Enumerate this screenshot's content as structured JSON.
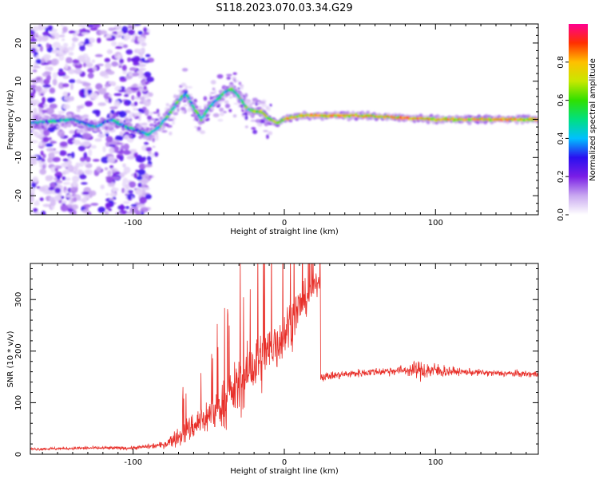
{
  "title": "S118.2023.070.03.34.G29",
  "chart_data": [
    {
      "type": "heatmap",
      "xlabel": "Height of straight line (km)",
      "ylabel": "Frequency (Hz)",
      "xlim": [
        -168,
        168
      ],
      "ylim": [
        -25,
        25
      ],
      "x_ticks": [
        -100,
        0,
        100
      ],
      "y_ticks": [
        -20,
        -10,
        0,
        10,
        20
      ],
      "colorbar": {
        "label": "Normalized spectral amplitude",
        "ticks": [
          0.0,
          0.2,
          0.4,
          0.6,
          0.8
        ],
        "range": [
          0,
          1
        ],
        "colors": [
          "#ffffff",
          "#c9a8f0",
          "#7a1ee6",
          "#2a10f0",
          "#00c0ff",
          "#00e080",
          "#30e000",
          "#c8e800",
          "#ffc000",
          "#ff3000",
          "#ff0090"
        ]
      },
      "ridge": [
        [
          -168,
          -1
        ],
        [
          -140,
          0
        ],
        [
          -125,
          -2
        ],
        [
          -115,
          0
        ],
        [
          -105,
          -2
        ],
        [
          -90,
          -4
        ],
        [
          -83,
          -2
        ],
        [
          -75,
          2
        ],
        [
          -70,
          5
        ],
        [
          -65,
          7
        ],
        [
          -60,
          3
        ],
        [
          -55,
          0
        ],
        [
          -50,
          3
        ],
        [
          -45,
          5
        ],
        [
          -40,
          7
        ],
        [
          -35,
          8
        ],
        [
          -30,
          6
        ],
        [
          -25,
          3
        ],
        [
          -20,
          2
        ],
        [
          -15,
          2
        ],
        [
          -10,
          0
        ],
        [
          -5,
          -1
        ],
        [
          0,
          0
        ],
        [
          10,
          1
        ],
        [
          25,
          1
        ],
        [
          50,
          1
        ],
        [
          75,
          0.5
        ],
        [
          100,
          0
        ],
        [
          125,
          0
        ],
        [
          150,
          0
        ],
        [
          168,
          0
        ]
      ]
    },
    {
      "type": "line",
      "xlabel": "Height of straight line (km)",
      "ylabel": "SNR (10 * v/v)",
      "xlim": [
        -168,
        168
      ],
      "ylim": [
        0,
        370
      ],
      "x_ticks": [
        -100,
        0,
        100
      ],
      "y_ticks": [
        0,
        100,
        200,
        300
      ],
      "series": [
        {
          "color": "#e8302a",
          "envelope": [
            [
              -168,
              10,
              4
            ],
            [
              -130,
              12,
              5
            ],
            [
              -100,
              12,
              5
            ],
            [
              -80,
              18,
              10
            ],
            [
              -70,
              35,
              30
            ],
            [
              -60,
              55,
              45
            ],
            [
              -50,
              75,
              55
            ],
            [
              -40,
              100,
              70
            ],
            [
              -30,
              135,
              85
            ],
            [
              -20,
              170,
              95
            ],
            [
              -10,
              200,
              90
            ],
            [
              0,
              235,
              85
            ],
            [
              10,
              285,
              65
            ],
            [
              20,
              325,
              35
            ],
            [
              24,
              340,
              25
            ],
            [
              25,
              150,
              12
            ],
            [
              40,
              155,
              12
            ],
            [
              60,
              160,
              12
            ],
            [
              80,
              163,
              15
            ],
            [
              90,
              163,
              30
            ],
            [
              100,
              162,
              25
            ],
            [
              115,
              160,
              10
            ],
            [
              140,
              157,
              10
            ],
            [
              168,
              155,
              10
            ]
          ]
        }
      ]
    }
  ]
}
